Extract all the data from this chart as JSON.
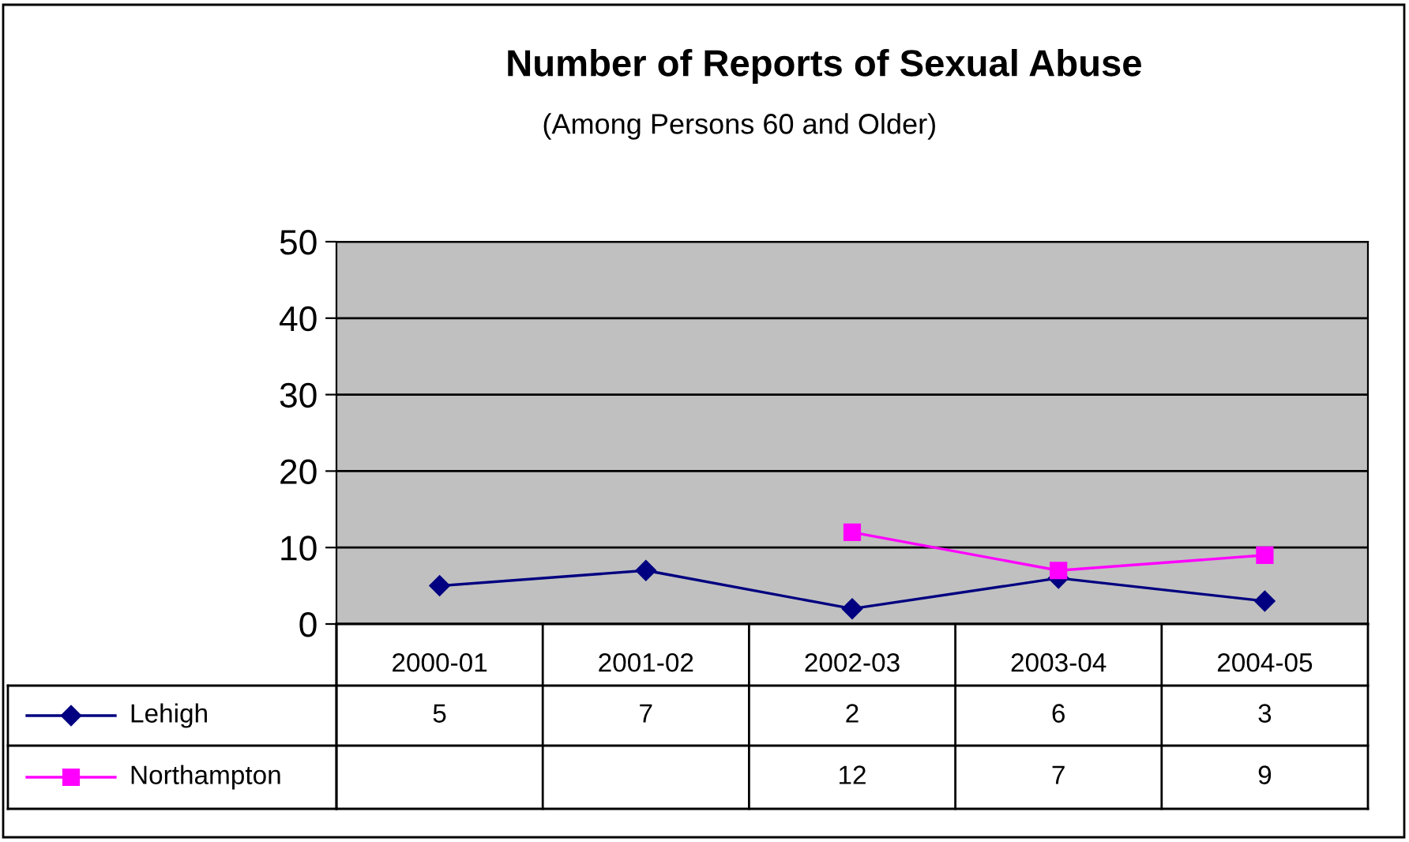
{
  "chart_data": {
    "type": "line",
    "title": "Number of Reports of Sexual Abuse",
    "subtitle": "(Among Persons 60 and Older)",
    "categories": [
      "2000-01",
      "2001-02",
      "2002-03",
      "2003-04",
      "2004-05"
    ],
    "series": [
      {
        "name": "Lehigh",
        "color": "#000080",
        "marker": "diamond",
        "values": [
          5,
          7,
          2,
          6,
          3
        ]
      },
      {
        "name": "Northampton",
        "color": "#ff00ff",
        "marker": "square",
        "values": [
          null,
          null,
          12,
          7,
          9
        ]
      }
    ],
    "ylim": [
      0,
      50
    ],
    "yticks": [
      0,
      10,
      20,
      30,
      40,
      50
    ],
    "grid": "y",
    "legend": "bottom",
    "data_labels": true
  }
}
